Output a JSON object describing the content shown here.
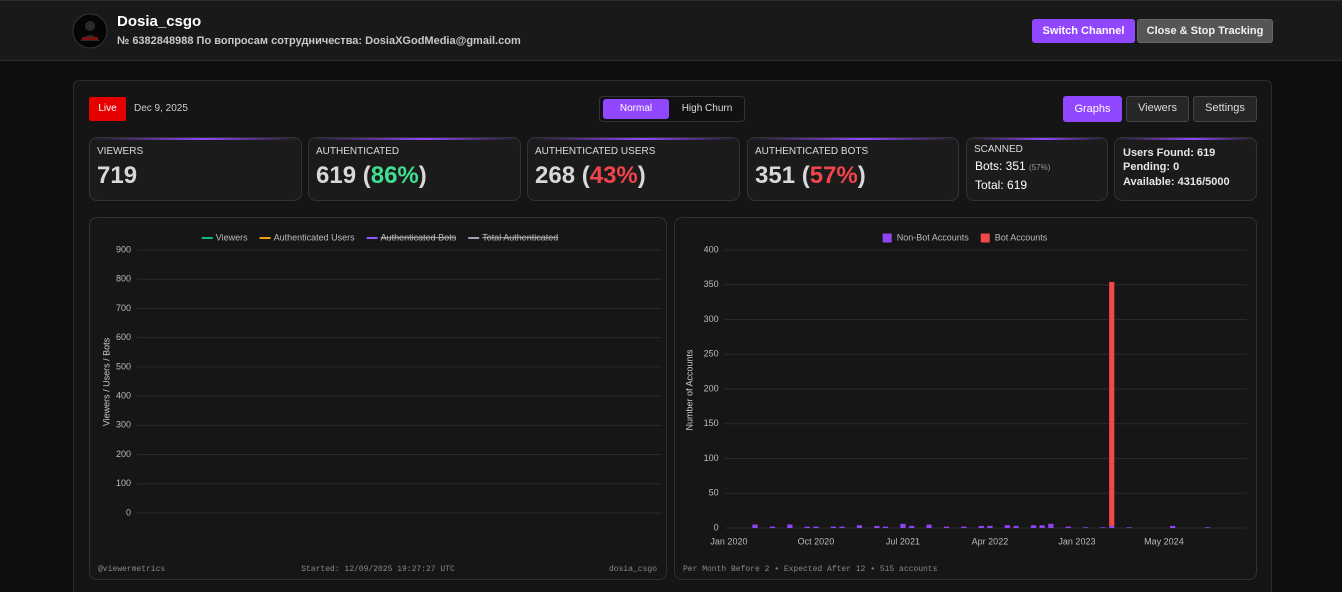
{
  "header": {
    "channel_name": "Dosia_csgo",
    "subtitle": "№ 6382848988 По вопросам сотрудничества: DosiaXGodMedia@gmail.com",
    "buttons": [
      "Switch Channel",
      "Close & Stop Tracking"
    ]
  },
  "toolbar": {
    "status": "Live",
    "date": "Dec 9, 2025",
    "modes": [
      "Normal",
      "High Churn"
    ],
    "tabs": [
      "Graphs",
      "Viewers",
      "Settings"
    ]
  },
  "stats": [
    {
      "label": "VIEWERS",
      "value": "719"
    },
    {
      "label": "AUTHENTICATED",
      "value": "619",
      "share": [
        "(",
        "86%",
        ")"
      ],
      "share_color": "#3ee08f"
    },
    {
      "label": "AUTHENTICATED USERS",
      "value": "268",
      "share": [
        "(",
        "43%",
        ")"
      ],
      "share_color": "#f2444d"
    },
    {
      "label": "AUTHENTICATED BOTS",
      "value": "351",
      "share": [
        "(",
        "57%",
        ")"
      ],
      "share_color": "#f2444d"
    }
  ],
  "scanned": {
    "label": "SCANNED",
    "bots": "Bots: 351",
    "bots_share": "(57%)",
    "total": "Total: 619"
  },
  "summary": [
    "Users Found: 619",
    "Pending: 0",
    "Available: 4316/5000"
  ],
  "chart_data": [
    {
      "type": "line",
      "x": [],
      "series": [
        {
          "name": "Viewers",
          "color": "#10b981",
          "values": []
        },
        {
          "name": "Authenticated Users",
          "color": "#f59e0b",
          "values": []
        },
        {
          "name": "Authenticated Bots",
          "color": "#8b5cf6",
          "values": [],
          "hidden": true
        },
        {
          "name": "Total Authenticated",
          "color": "#9ca3af",
          "values": [],
          "hidden": true
        }
      ],
      "y_label": "Viewers / Users / Bots",
      "ylim": [
        0,
        900
      ],
      "yticks": [
        0,
        100,
        200,
        300,
        400,
        500,
        600,
        700,
        800,
        900
      ],
      "grid": true,
      "footer": [
        "@viewermetrics",
        "Started: 12/09/2025 19:27:27 UTC",
        "dosia_csgo"
      ]
    },
    {
      "type": "bar",
      "categories": [
        "Jan 2020",
        null,
        null,
        null,
        null,
        null,
        null,
        null,
        null,
        null,
        "Oct 2020",
        null,
        null,
        null,
        null,
        null,
        null,
        null,
        null,
        null,
        "Jul 2021",
        null,
        null,
        null,
        null,
        null,
        null,
        null,
        null,
        null,
        "Apr 2022",
        null,
        null,
        null,
        null,
        null,
        null,
        null,
        null,
        null,
        "Jan 2023",
        null,
        null,
        null,
        null,
        null,
        null,
        null,
        null,
        null,
        "May 2024",
        null,
        null,
        null,
        null,
        null,
        null,
        null,
        null,
        null
      ],
      "series": [
        {
          "name": "Non-Bot Accounts",
          "color": "#8f45f5",
          "values": [
            0,
            0,
            0,
            5,
            0,
            2,
            0,
            5,
            0,
            2,
            2,
            0,
            2,
            2,
            0,
            4,
            0,
            3,
            2,
            0,
            6,
            3,
            0,
            5,
            0,
            2,
            0,
            2,
            0,
            3,
            3,
            0,
            4,
            3,
            0,
            4,
            4,
            6,
            0,
            2,
            0,
            1,
            0,
            1,
            3,
            0,
            1,
            0,
            0,
            0,
            0,
            3,
            0,
            0,
            0,
            1,
            0,
            0,
            0,
            0
          ]
        },
        {
          "name": "Bot Accounts",
          "color": "#f24848",
          "values": [
            0,
            0,
            0,
            0,
            0,
            0,
            0,
            0,
            0,
            0,
            0,
            0,
            0,
            0,
            0,
            0,
            0,
            0,
            0,
            0,
            0,
            0,
            0,
            0,
            0,
            0,
            0,
            0,
            0,
            0,
            0,
            0,
            0,
            0,
            0,
            0,
            0,
            0,
            0,
            0,
            0,
            0,
            0,
            0,
            351,
            0,
            0,
            0,
            0,
            0,
            0,
            0,
            0,
            0,
            0,
            0,
            0,
            0,
            0,
            0
          ]
        }
      ],
      "stacked": true,
      "y_label": "Number of Accounts",
      "ylim": [
        0,
        400
      ],
      "yticks": [
        0,
        50,
        100,
        150,
        200,
        250,
        300,
        350,
        400
      ],
      "grid": true,
      "footer": [
        "Per Month Before 2 • Expected After 12 • 515 accounts"
      ]
    }
  ]
}
